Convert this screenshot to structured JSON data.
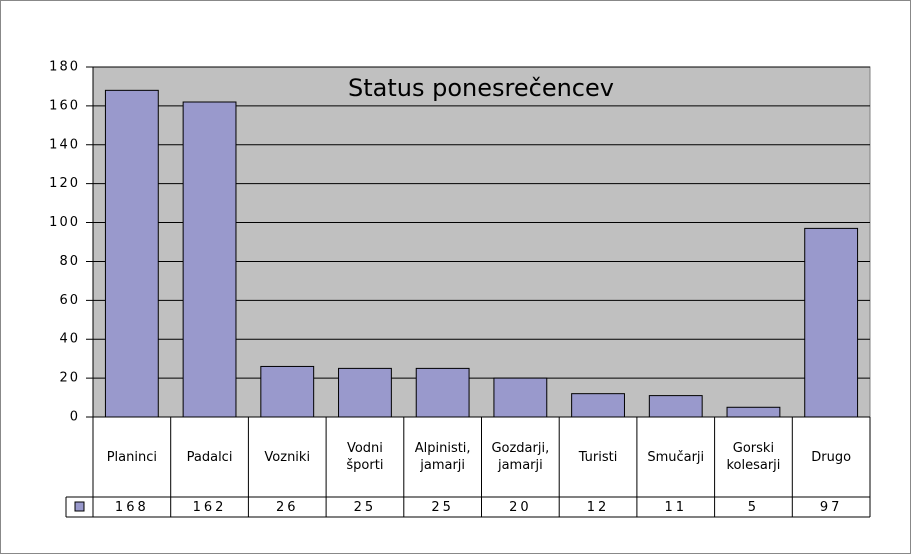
{
  "chart_data": {
    "type": "bar",
    "title": "Status ponesrečencev",
    "categories": [
      "Planinci",
      "Padalci",
      "Vozniki",
      "Vodni športi",
      "Alpinisti, jamarji",
      "Gozdarji, jamarji",
      "Turisti",
      "Smučarji",
      "Gorski kolesarji",
      "Drugo"
    ],
    "values": [
      168,
      162,
      26,
      25,
      25,
      20,
      12,
      11,
      5,
      97
    ],
    "color": "#9999cc",
    "ylim": [
      0,
      180
    ],
    "yticks": [
      0,
      20,
      40,
      60,
      80,
      100,
      120,
      140,
      160,
      180
    ],
    "grid": true
  }
}
